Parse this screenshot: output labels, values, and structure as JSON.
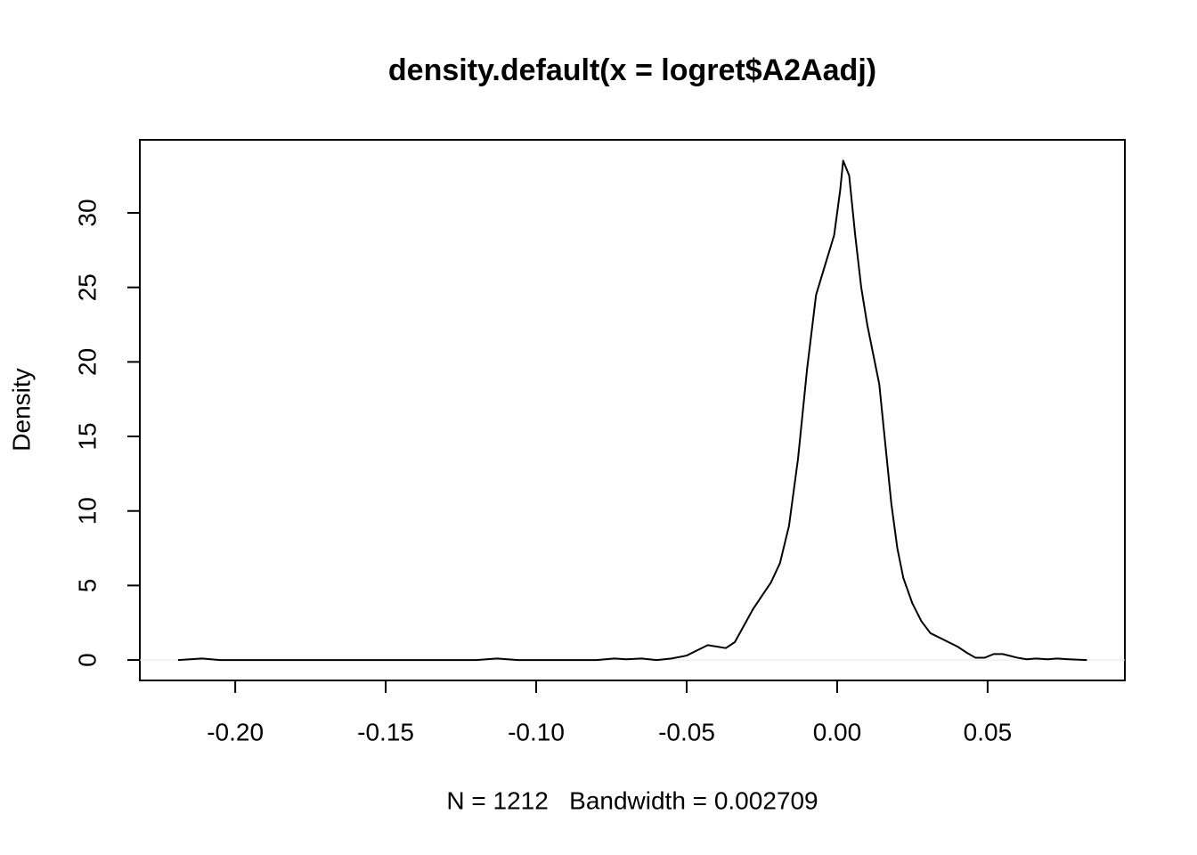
{
  "chart_data": {
    "type": "line",
    "title": "density.default(x = logret$A2Aadj)",
    "xlabel": "N = 1212   Bandwidth = 0.002709",
    "ylabel": "Density",
    "xlim": [
      -0.2317,
      0.0956
    ],
    "ylim": [
      -1.37,
      34.9
    ],
    "xticks": [
      {
        "value": -0.2,
        "label": "-0.20"
      },
      {
        "value": -0.15,
        "label": "-0.15"
      },
      {
        "value": -0.1,
        "label": "-0.10"
      },
      {
        "value": -0.05,
        "label": "-0.05"
      },
      {
        "value": 0,
        "label": "0.00"
      },
      {
        "value": 0.05,
        "label": "0.05"
      }
    ],
    "yticks": [
      0,
      5,
      10,
      15,
      20,
      25,
      30
    ],
    "zero_line": true,
    "x": [
      -0.219,
      -0.211,
      -0.205,
      -0.12,
      -0.113,
      -0.106,
      -0.08,
      -0.074,
      -0.07,
      -0.065,
      -0.06,
      -0.055,
      -0.05,
      -0.046,
      -0.043,
      -0.04,
      -0.037,
      -0.034,
      -0.031,
      -0.028,
      -0.025,
      -0.022,
      -0.019,
      -0.016,
      -0.013,
      -0.01,
      -0.007,
      -0.004,
      -0.001,
      0.001,
      0.002,
      0.004,
      0.006,
      0.008,
      0.01,
      0.012,
      0.014,
      0.016,
      0.018,
      0.02,
      0.022,
      0.025,
      0.028,
      0.031,
      0.035,
      0.04,
      0.043,
      0.046,
      0.049,
      0.052,
      0.055,
      0.06,
      0.063,
      0.066,
      0.07,
      0.073,
      0.077,
      0.083
    ],
    "series": [
      {
        "name": "density",
        "color": "#000000",
        "values": [
          0,
          0.1,
          0,
          0,
          0.1,
          0,
          0,
          0.1,
          0.05,
          0.1,
          0,
          0.1,
          0.3,
          0.7,
          1.0,
          0.9,
          0.8,
          1.2,
          2.3,
          3.4,
          4.3,
          5.2,
          6.5,
          9.0,
          13.5,
          19.5,
          24.5,
          26.5,
          28.5,
          31.5,
          33.5,
          32.5,
          28.5,
          25,
          22.5,
          20.5,
          18.5,
          14.5,
          10.5,
          7.5,
          5.5,
          3.8,
          2.6,
          1.8,
          1.4,
          0.9,
          0.5,
          0.15,
          0.15,
          0.4,
          0.4,
          0.15,
          0.05,
          0.1,
          0.05,
          0.1,
          0.05,
          0
        ]
      }
    ]
  }
}
